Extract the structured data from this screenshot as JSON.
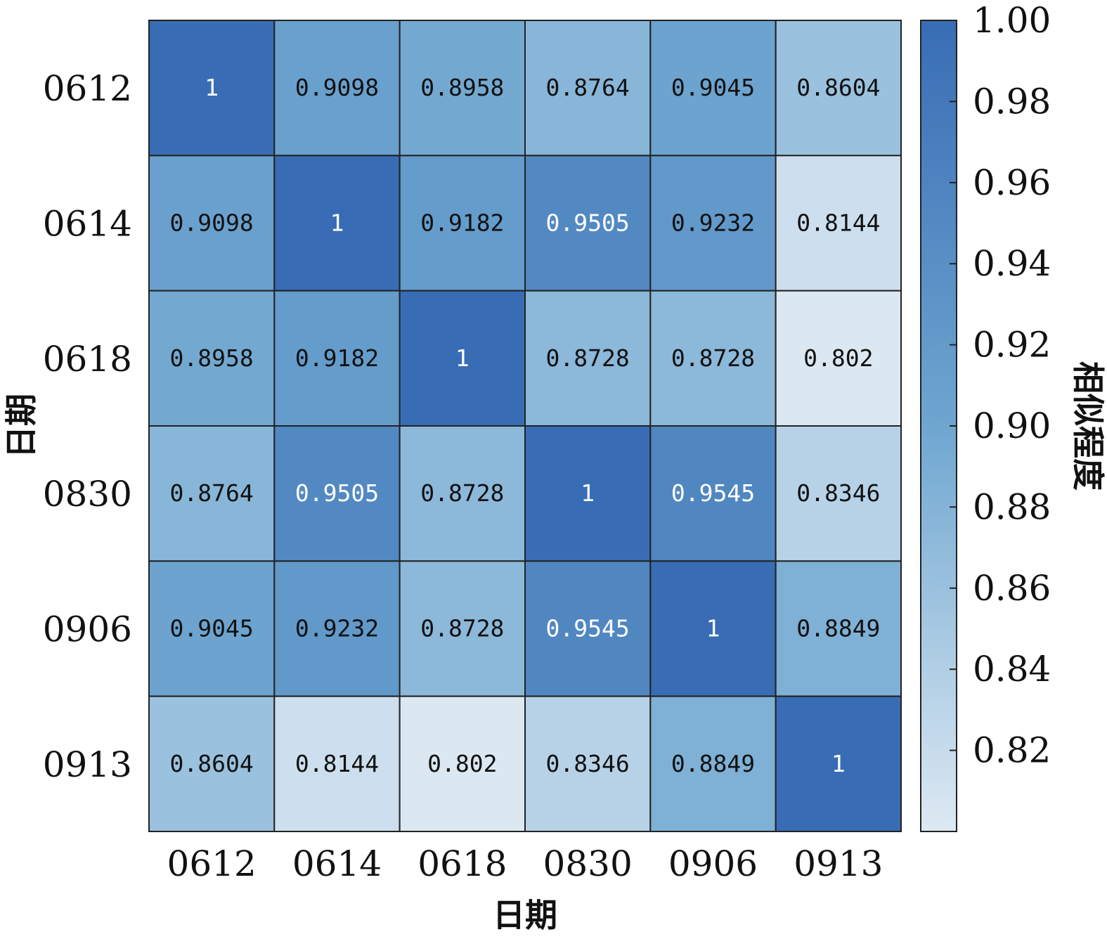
{
  "chart_data": {
    "type": "heatmap",
    "x_categories": [
      "0612",
      "0614",
      "0618",
      "0830",
      "0906",
      "0913"
    ],
    "y_categories": [
      "0612",
      "0614",
      "0618",
      "0830",
      "0906",
      "0913"
    ],
    "xlabel": "日期",
    "ylabel": "日期",
    "values": [
      [
        1,
        0.9098,
        0.8958,
        0.8764,
        0.9045,
        0.8604
      ],
      [
        0.9098,
        1,
        0.9182,
        0.9505,
        0.9232,
        0.8144
      ],
      [
        0.8958,
        0.9182,
        1,
        0.8728,
        0.8728,
        0.802
      ],
      [
        0.8764,
        0.9505,
        0.8728,
        1,
        0.9545,
        0.8346
      ],
      [
        0.9045,
        0.9232,
        0.8728,
        0.9545,
        1,
        0.8849
      ],
      [
        0.8604,
        0.8144,
        0.802,
        0.8346,
        0.8849,
        1
      ]
    ],
    "cell_labels": [
      [
        "1",
        "0.9098",
        "0.8958",
        "0.8764",
        "0.9045",
        "0.8604"
      ],
      [
        "0.9098",
        "1",
        "0.9182",
        "0.9505",
        "0.9232",
        "0.8144"
      ],
      [
        "0.8958",
        "0.9182",
        "1",
        "0.8728",
        "0.8728",
        "0.802"
      ],
      [
        "0.8764",
        "0.9505",
        "0.8728",
        "1",
        "0.9545",
        "0.8346"
      ],
      [
        "0.9045",
        "0.9232",
        "0.8728",
        "0.9545",
        "1",
        "0.8849"
      ],
      [
        "0.8604",
        "0.8144",
        "0.802",
        "0.8346",
        "0.8849",
        "1"
      ]
    ],
    "colorbar": {
      "label": "相似程度",
      "range": [
        0.8,
        1.0
      ],
      "ticks": [
        1.0,
        0.98,
        0.96,
        0.94,
        0.92,
        0.9,
        0.88,
        0.86,
        0.84,
        0.82
      ],
      "tick_labels": [
        "1.00",
        "0.98",
        "0.96",
        "0.94",
        "0.92",
        "0.90",
        "0.88",
        "0.86",
        "0.84",
        "0.82"
      ],
      "color_low": "#dde9f3",
      "color_mid": "#6ea6d0",
      "color_high": "#386db5"
    },
    "label_color_dark": "#111111",
    "label_color_light": "#ffffff"
  }
}
